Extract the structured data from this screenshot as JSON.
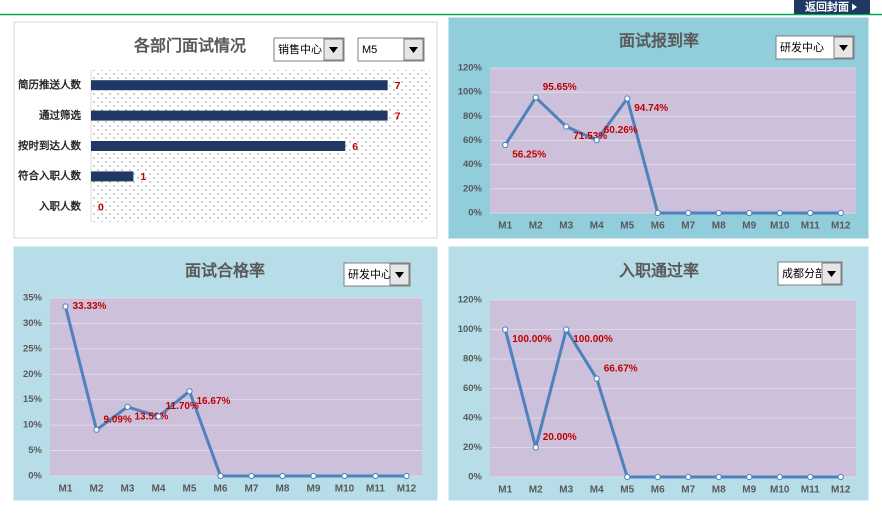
{
  "nav": {
    "back_button": "返回封面"
  },
  "chart_data": [
    {
      "type": "bar",
      "orientation": "horizontal",
      "title": "各部门面试情况",
      "dropdowns": [
        "销售中心",
        "M5"
      ],
      "categories": [
        "简历推送人数",
        "通过筛选",
        "按时到达人数",
        "符合入职人数",
        "入职人数"
      ],
      "values": [
        7,
        7,
        6,
        1,
        0
      ],
      "xlim": [
        0,
        8
      ],
      "color": "#1f3864",
      "label_color": "#c00000"
    },
    {
      "type": "line",
      "title": "面试报到率",
      "dropdowns": [
        "研发中心"
      ],
      "categories": [
        "M1",
        "M2",
        "M3",
        "M4",
        "M5",
        "M6",
        "M7",
        "M8",
        "M9",
        "M10",
        "M11",
        "M12"
      ],
      "values": [
        56.25,
        95.65,
        71.53,
        60.26,
        94.74,
        0,
        0,
        0,
        0,
        0,
        0,
        0
      ],
      "value_labels": [
        "56.25%",
        "95.65%",
        "71.53%",
        "60.26%",
        "94.74%",
        null,
        null,
        null,
        null,
        null,
        null,
        null
      ],
      "ylim": [
        0,
        120
      ],
      "yticks": [
        {
          "value": 0,
          "label": "0%"
        },
        {
          "value": 20,
          "label": "20%"
        },
        {
          "value": 40,
          "label": "40%"
        },
        {
          "value": 60,
          "label": "60%"
        },
        {
          "value": 80,
          "label": "80%"
        },
        {
          "value": 100,
          "label": "100%"
        },
        {
          "value": 120,
          "label": "120%"
        }
      ],
      "grid": true,
      "color": "#4f81bd",
      "label_color": "#c00000"
    },
    {
      "type": "line",
      "title": "面试合格率",
      "dropdowns": [
        "研发中心"
      ],
      "categories": [
        "M1",
        "M2",
        "M3",
        "M4",
        "M5",
        "M6",
        "M7",
        "M8",
        "M9",
        "M10",
        "M11",
        "M12"
      ],
      "values": [
        33.33,
        9.09,
        13.59,
        11.7,
        16.67,
        0,
        0,
        0,
        0,
        0,
        0,
        0
      ],
      "value_labels": [
        "33.33%",
        "9.09%",
        "13.59%",
        "11.70%",
        "16.67%",
        null,
        null,
        null,
        null,
        null,
        null,
        null
      ],
      "ylim": [
        0,
        35
      ],
      "yticks": [
        {
          "value": 0,
          "label": "0%"
        },
        {
          "value": 5,
          "label": "5%"
        },
        {
          "value": 10,
          "label": "10%"
        },
        {
          "value": 15,
          "label": "15%"
        },
        {
          "value": 20,
          "label": "20%"
        },
        {
          "value": 25,
          "label": "25%"
        },
        {
          "value": 30,
          "label": "30%"
        },
        {
          "value": 35,
          "label": "35%"
        }
      ],
      "grid": true,
      "color": "#4f81bd",
      "label_color": "#c00000"
    },
    {
      "type": "line",
      "title": "入职通过率",
      "dropdowns": [
        "成都分部"
      ],
      "categories": [
        "M1",
        "M2",
        "M3",
        "M4",
        "M5",
        "M6",
        "M7",
        "M8",
        "M9",
        "M10",
        "M11",
        "M12"
      ],
      "values": [
        100,
        20,
        100,
        66.67,
        0,
        0,
        0,
        0,
        0,
        0,
        0,
        0
      ],
      "value_labels": [
        "100.00%",
        "20.00%",
        "100.00%",
        "66.67%",
        null,
        null,
        null,
        null,
        null,
        null,
        null,
        null
      ],
      "ylim": [
        0,
        120
      ],
      "yticks": [
        {
          "value": 0,
          "label": "0%"
        },
        {
          "value": 20,
          "label": "20%"
        },
        {
          "value": 40,
          "label": "40%"
        },
        {
          "value": 60,
          "label": "60%"
        },
        {
          "value": 80,
          "label": "80%"
        },
        {
          "value": 100,
          "label": "100%"
        },
        {
          "value": 120,
          "label": "120%"
        }
      ],
      "grid": true,
      "color": "#4f81bd",
      "label_color": "#c00000"
    }
  ]
}
